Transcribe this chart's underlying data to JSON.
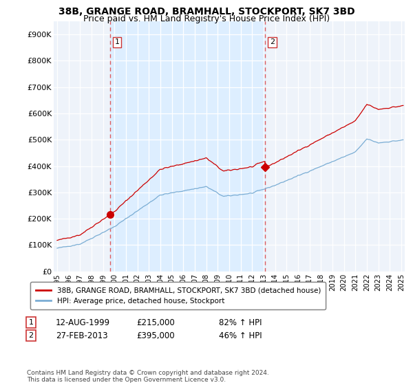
{
  "title": "38B, GRANGE ROAD, BRAMHALL, STOCKPORT, SK7 3BD",
  "subtitle": "Price paid vs. HM Land Registry's House Price Index (HPI)",
  "title_fontsize": 10,
  "subtitle_fontsize": 9,
  "hpi_color": "#7aadd4",
  "paid_color": "#cc0000",
  "vline_color": "#dd4444",
  "shade_color": "#ddeeff",
  "background_color": "#eef3fa",
  "legend_label_paid": "38B, GRANGE ROAD, BRAMHALL, STOCKPORT, SK7 3BD (detached house)",
  "legend_label_hpi": "HPI: Average price, detached house, Stockport",
  "annotation1_label": "1",
  "annotation1_date": "12-AUG-1999",
  "annotation1_price": "£215,000",
  "annotation1_hpi": "82% ↑ HPI",
  "annotation1_year": 1999.62,
  "annotation1_value": 215000,
  "annotation2_label": "2",
  "annotation2_date": "27-FEB-2013",
  "annotation2_price": "£395,000",
  "annotation2_hpi": "46% ↑ HPI",
  "annotation2_year": 2013.12,
  "annotation2_value": 395000,
  "footer": "Contains HM Land Registry data © Crown copyright and database right 2024.\nThis data is licensed under the Open Government Licence v3.0.",
  "ylim": [
    0,
    950000
  ],
  "yticks": [
    0,
    100000,
    200000,
    300000,
    400000,
    500000,
    600000,
    700000,
    800000,
    900000
  ],
  "ytick_labels": [
    "£0",
    "£100K",
    "£200K",
    "£300K",
    "£400K",
    "£500K",
    "£600K",
    "£700K",
    "£800K",
    "£900K"
  ],
  "xlim_left": 1994.7,
  "xlim_right": 2025.3
}
